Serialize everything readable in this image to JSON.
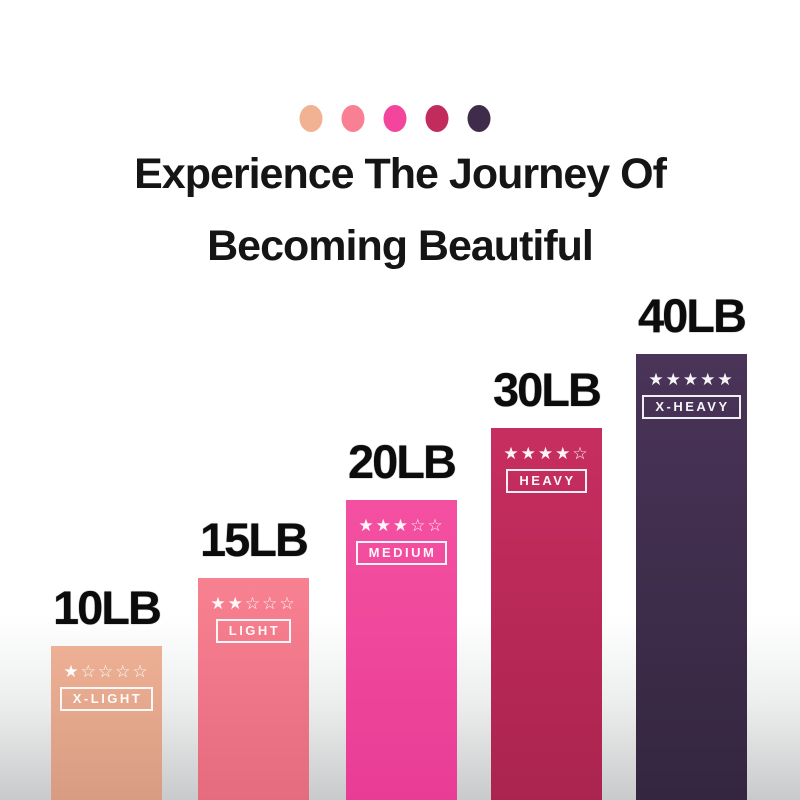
{
  "swatches": {
    "colors": [
      "#f1b193",
      "#f97f92",
      "#f4459d",
      "#c12c5d",
      "#3f2c4b"
    ]
  },
  "title": {
    "line1": "Experience The Journey Of",
    "line2": "Becoming Beautiful"
  },
  "chart_data": {
    "type": "bar",
    "title": "Experience The Journey Of Becoming Beautiful",
    "unit": "LB",
    "categories": [
      "X-LIGHT",
      "LIGHT",
      "MEDIUM",
      "HEAVY",
      "X-HEAVY"
    ],
    "values": [
      10,
      15,
      20,
      30,
      40
    ],
    "ylim": [
      0,
      45
    ],
    "legend_position": "none",
    "grid": false,
    "bars": [
      {
        "label": "10LB",
        "tag": "X-LIGHT",
        "stars": 1,
        "max_stars": 5,
        "color_top": "#eeb095",
        "color_bottom": "#d79c82"
      },
      {
        "label": "15LB",
        "tag": "LIGHT",
        "stars": 2,
        "max_stars": 5,
        "color_top": "#f88191",
        "color_bottom": "#e56b7f"
      },
      {
        "label": "20LB",
        "tag": "MEDIUM",
        "stars": 3,
        "max_stars": 5,
        "color_top": "#f450a1",
        "color_bottom": "#e93d95"
      },
      {
        "label": "30LB",
        "tag": "HEAVY",
        "stars": 4,
        "max_stars": 5,
        "color_top": "#c72e60",
        "color_bottom": "#ab2450"
      },
      {
        "label": "40LB",
        "tag": "X-HEAVY",
        "stars": 5,
        "max_stars": 5,
        "color_top": "#4a3459",
        "color_bottom": "#342640"
      }
    ]
  }
}
